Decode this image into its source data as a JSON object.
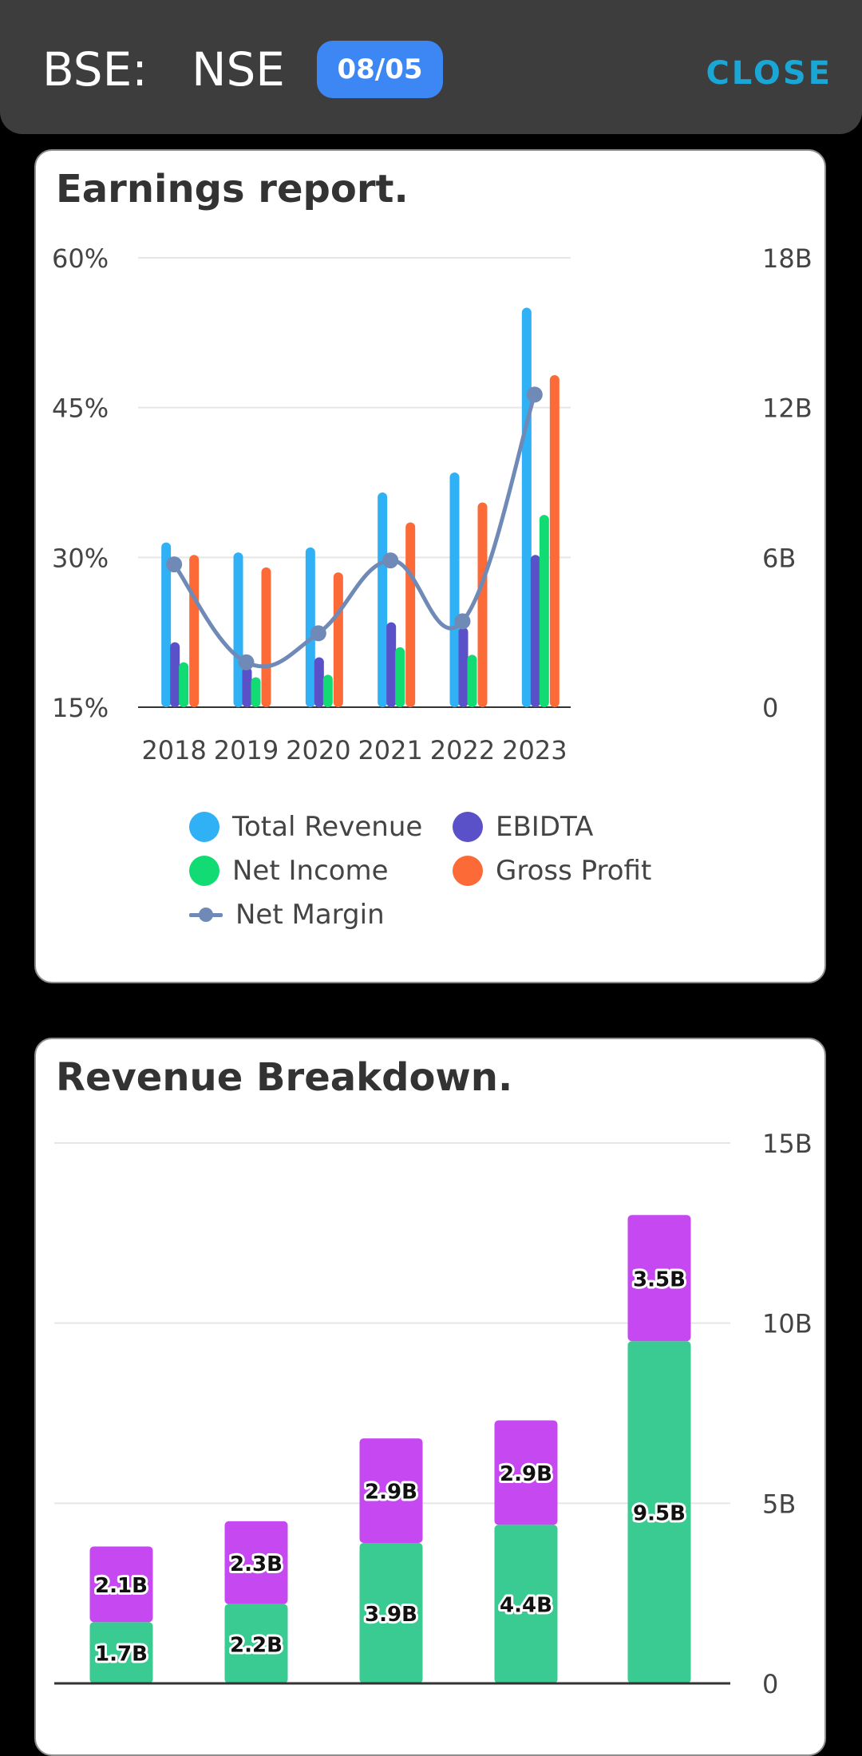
{
  "header": {
    "ticker": "BSE:   NSE",
    "date_badge": "08/05",
    "close_label": "CLOSE"
  },
  "earnings": {
    "title": "Earnings report."
  },
  "revenue_breakdown": {
    "title": "Revenue Breakdown."
  },
  "chart_data": [
    {
      "type": "bar",
      "title": "Earnings report.",
      "categories": [
        "2018",
        "2019",
        "2020",
        "2021",
        "2022",
        "2023"
      ],
      "left_axis": {
        "ticks": [
          "15%",
          "30%",
          "45%",
          "60%"
        ],
        "ylim": [
          15,
          60
        ]
      },
      "right_axis": {
        "ticks": [
          "0",
          "6B",
          "12B",
          "18B"
        ],
        "ylim": [
          0,
          18
        ]
      },
      "grid": true,
      "legend_position": "bottom",
      "series": [
        {
          "name": "Total Revenue",
          "type": "bar",
          "axis": "right",
          "color": "#30b0f5",
          "values": [
            6.6,
            6.2,
            6.4,
            8.6,
            9.4,
            16.0
          ]
        },
        {
          "name": "EBIDTA",
          "type": "bar",
          "axis": "right",
          "color": "#5a50c8",
          "values": [
            2.6,
            1.6,
            2.0,
            3.4,
            3.2,
            6.1
          ]
        },
        {
          "name": "Net Income",
          "type": "bar",
          "axis": "right",
          "color": "#12db74",
          "values": [
            1.8,
            1.2,
            1.3,
            2.4,
            2.1,
            7.7
          ]
        },
        {
          "name": "Gross Profit",
          "type": "bar",
          "axis": "right",
          "color": "#fb6a37",
          "values": [
            6.1,
            5.6,
            5.4,
            7.4,
            8.2,
            13.3
          ]
        },
        {
          "name": "Net Margin",
          "type": "line",
          "axis": "left",
          "color": "#6f8ab7",
          "values": [
            29.3,
            19.5,
            22.4,
            29.7,
            23.6,
            46.3
          ]
        }
      ]
    },
    {
      "type": "bar",
      "stacked": true,
      "title": "Revenue Breakdown.",
      "categories": [
        "",
        "",
        "",
        "",
        ""
      ],
      "right_axis": {
        "ticks": [
          "0",
          "5B",
          "10B",
          "15B"
        ],
        "ylim": [
          0,
          15
        ]
      },
      "grid": true,
      "series": [
        {
          "name": "",
          "color": "#3acb92",
          "values": [
            1.7,
            2.2,
            3.9,
            4.4,
            9.5
          ],
          "labels": [
            "1.7B",
            "2.2B",
            "3.9B",
            "4.4B",
            "9.5B"
          ]
        },
        {
          "name": "",
          "color": "#c648f0",
          "values": [
            2.1,
            2.3,
            2.9,
            2.9,
            3.5
          ],
          "labels": [
            "2.1B",
            "2.3B",
            "2.9B",
            "2.9B",
            "3.5B"
          ]
        }
      ]
    }
  ]
}
